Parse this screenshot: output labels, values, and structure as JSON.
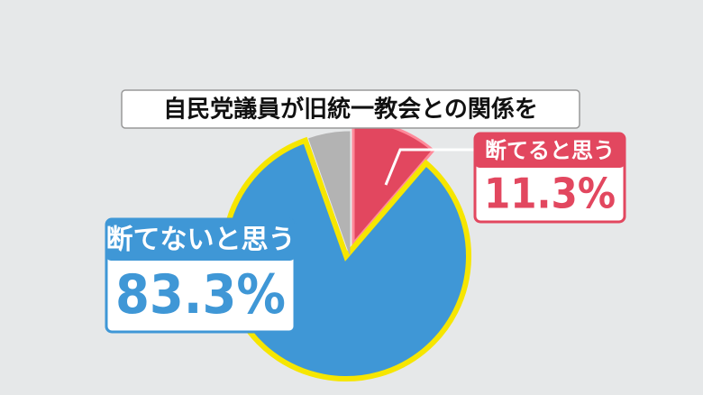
{
  "chart_data": {
    "type": "pie",
    "title": "自民党議員が旧統一教会との関係を",
    "categories": [
      "断てると思う",
      "断てないと思う",
      null
    ],
    "values": [
      11.3,
      83.3,
      5.4
    ],
    "value_labels": [
      "11.3%",
      "83.3%",
      null
    ],
    "colors": [
      "#e2475f",
      "#3f97d6",
      "#b3b3b3"
    ]
  }
}
